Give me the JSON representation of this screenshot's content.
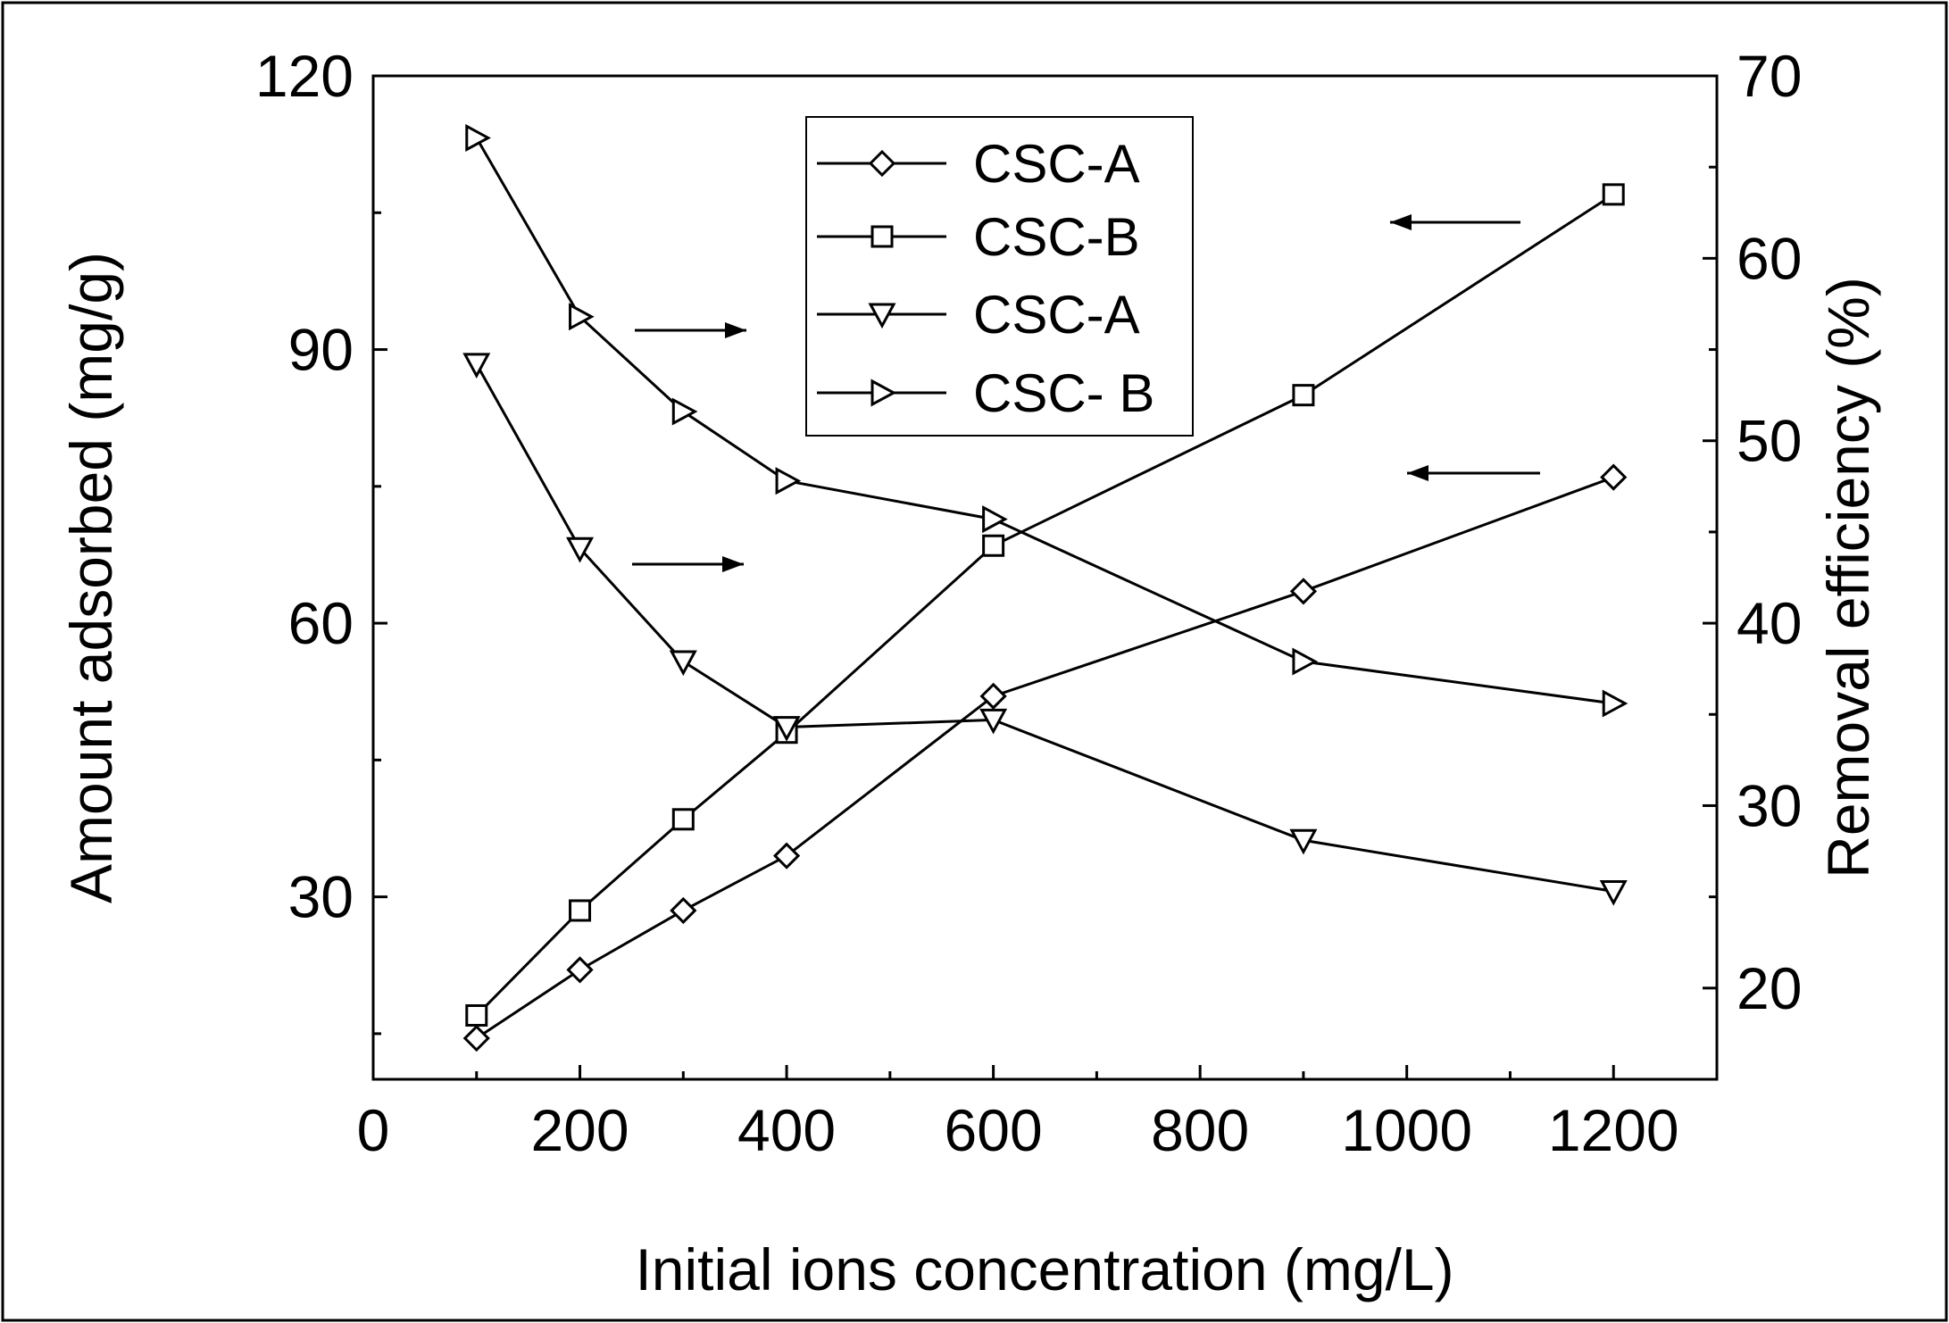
{
  "chart_data": {
    "type": "line",
    "xlabel": "Initial ions concentration (mg/L)",
    "ylabel_left": "Amount adsorbed (mg/g)",
    "ylabel_right": "Removal efficiency (%)",
    "xlim": [
      0,
      1300
    ],
    "ylim_left": [
      10,
      120
    ],
    "ylim_right": [
      15,
      70
    ],
    "x_ticks": [
      0,
      200,
      400,
      600,
      800,
      1000,
      1200
    ],
    "y_left_ticks": [
      30,
      60,
      90,
      120
    ],
    "y_right_ticks": [
      20,
      30,
      40,
      50,
      60,
      70
    ],
    "x": [
      100,
      200,
      300,
      400,
      600,
      900,
      1200
    ],
    "series": [
      {
        "name": "CSC-A",
        "axis": "left",
        "marker": "diamond",
        "values": [
          14.5,
          22,
          28.5,
          34.5,
          52,
          63.5,
          76
        ]
      },
      {
        "name": "CSC-B",
        "axis": "left",
        "marker": "square",
        "values": [
          17,
          28.5,
          38.5,
          48,
          68.5,
          85,
          107
        ]
      },
      {
        "name": "CSC-A",
        "axis": "right",
        "marker": "triangle-down",
        "values": [
          54.2,
          44.1,
          37.9,
          34.3,
          34.7,
          28.1,
          25.3
        ]
      },
      {
        "name": "CSC- B",
        "axis": "right",
        "marker": "triangle-right",
        "values": [
          66.6,
          56.8,
          51.6,
          47.8,
          45.7,
          37.9,
          35.6
        ]
      }
    ],
    "arrows": [
      {
        "direction": "right",
        "target_axis": "right"
      },
      {
        "direction": "right",
        "target_axis": "right"
      },
      {
        "direction": "left",
        "target_axis": "left"
      },
      {
        "direction": "left",
        "target_axis": "left"
      }
    ],
    "legend_position": "top-center"
  }
}
